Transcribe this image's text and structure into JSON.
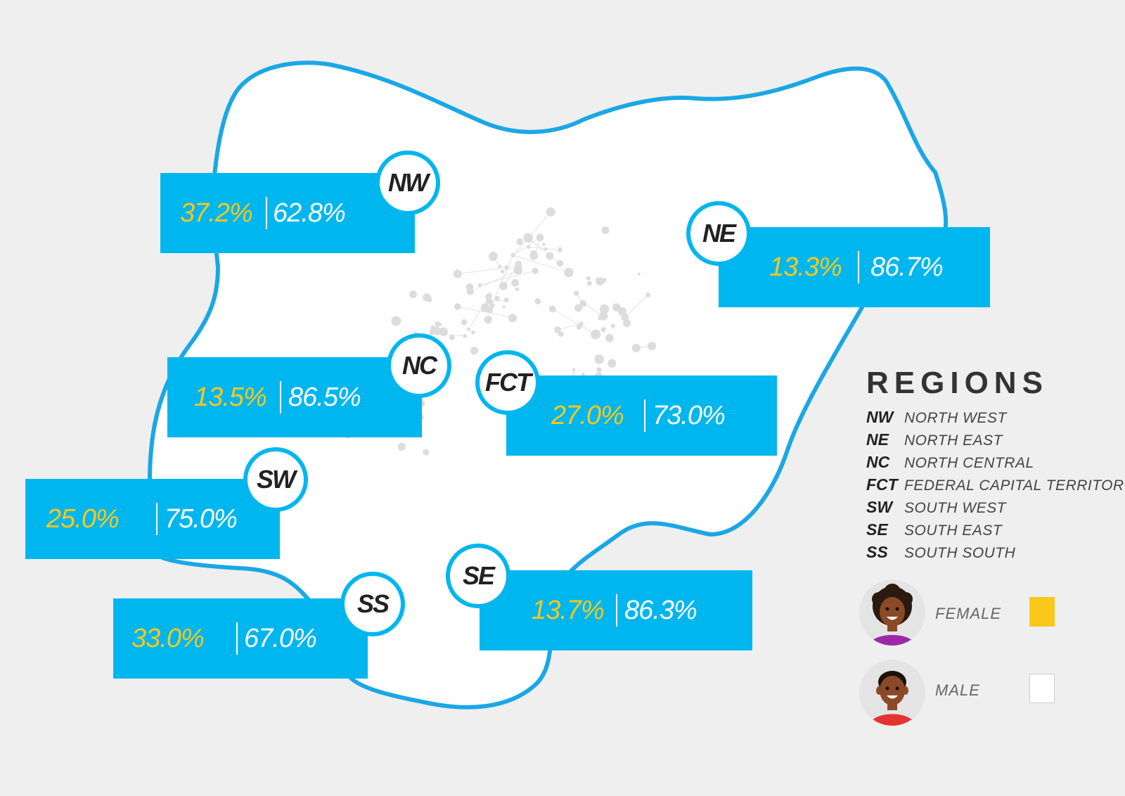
{
  "regions": [
    {
      "code": "NW",
      "female": "37.2%",
      "male": "62.8%"
    },
    {
      "code": "NE",
      "female": "13.3%",
      "male": "86.7%"
    },
    {
      "code": "NC",
      "female": "13.5%",
      "male": "86.5%"
    },
    {
      "code": "FCT",
      "female": "27.0%",
      "male": "73.0%"
    },
    {
      "code": "SW",
      "female": "25.0%",
      "male": "75.0%"
    },
    {
      "code": "SS",
      "female": "33.0%",
      "male": "67.0%"
    },
    {
      "code": "SE",
      "female": "13.7%",
      "male": "86.3%"
    }
  ],
  "legend": {
    "title": "REGIONS",
    "items": [
      {
        "code": "NW",
        "name": "NORTH WEST"
      },
      {
        "code": "NE",
        "name": "NORTH EAST"
      },
      {
        "code": "NC",
        "name": "NORTH CENTRAL"
      },
      {
        "code": "FCT",
        "name": "FEDERAL CAPITAL TERRITORY"
      },
      {
        "code": "SW",
        "name": "SOUTH WEST"
      },
      {
        "code": "SE",
        "name": "SOUTH EAST"
      },
      {
        "code": "SS",
        "name": "SOUTH SOUTH"
      }
    ]
  },
  "gender": {
    "female": {
      "label": "FEMALE",
      "color": "#f9c81b",
      "icon": "female-avatar-icon"
    },
    "male": {
      "label": "MALE",
      "color": "#ffffff",
      "icon": "male-avatar-icon"
    }
  },
  "colors": {
    "accent": "#00b6ee",
    "female": "#f9c81b",
    "male": "#ffffff",
    "background": "#efefef"
  }
}
